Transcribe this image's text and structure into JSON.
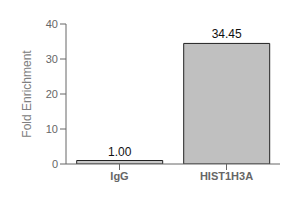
{
  "chart_data": {
    "type": "bar",
    "categories": [
      "IgG",
      "HIST1H3A"
    ],
    "values": [
      1.0,
      34.45
    ],
    "value_labels": [
      "1.00",
      "34.45"
    ],
    "data_labels": true,
    "colors": [
      "#c8c8c8",
      "#c0c0c0"
    ],
    "ylabel": "Fold Enrichment",
    "ylim": [
      0,
      40
    ],
    "yticks": [
      0,
      10,
      20,
      30,
      40
    ],
    "grid": false
  }
}
